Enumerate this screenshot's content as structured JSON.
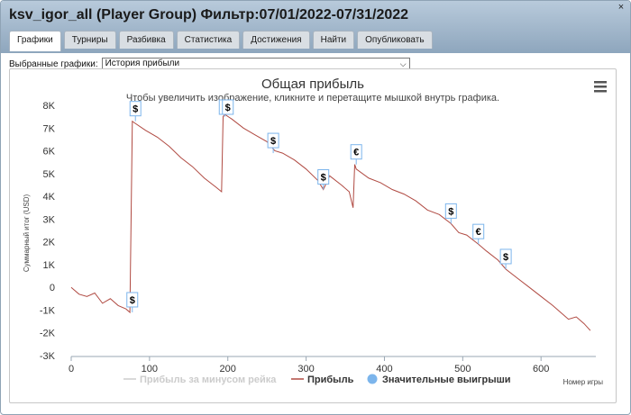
{
  "window": {
    "title": "ksv_igor_all (Player Group) Фильтр:07/01/2022-07/31/2022",
    "close_symbol": "×"
  },
  "tabs": [
    {
      "label": "Графики",
      "active": true
    },
    {
      "label": "Турниры",
      "active": false
    },
    {
      "label": "Разбивка",
      "active": false
    },
    {
      "label": "Статистика",
      "active": false
    },
    {
      "label": "Достижения",
      "active": false
    },
    {
      "label": "Найти",
      "active": false
    },
    {
      "label": "Опубликовать",
      "active": false
    }
  ],
  "selector": {
    "label": "Выбранные графики:",
    "value": "История прибыли"
  },
  "colors": {
    "profit_line": "#b04a42",
    "rake_line": "#bbbbbb",
    "big_win": "#7cb5ec"
  },
  "chart_data": {
    "type": "line",
    "title": "Общая прибыль",
    "subtitle": "Чтобы увеличить изображение, кликните и перетащите мышкой внутрь графика.",
    "ylabel": "Суммарный итог (USD)",
    "xlabel": "Номер игры",
    "x_ticks": [
      "0",
      "100",
      "200",
      "300",
      "400",
      "500",
      "600"
    ],
    "y_ticks": [
      "-3K",
      "-2K",
      "-1K",
      "0",
      "1K",
      "2K",
      "3K",
      "4K",
      "5K",
      "6K",
      "7K",
      "8K"
    ],
    "xlim": [
      0,
      670
    ],
    "ylim": [
      -3000,
      8000
    ],
    "grid": false,
    "legend": {
      "position": "bottom",
      "items": [
        {
          "label": "Прибыль за минусом рейка",
          "visible": false
        },
        {
          "label": "Прибыль",
          "visible": true
        },
        {
          "label": "Значительные выигрыши",
          "visible": true
        }
      ]
    },
    "series": [
      {
        "name": "Прибыль",
        "x": [
          0,
          10,
          20,
          30,
          40,
          50,
          60,
          70,
          75,
          78,
          80,
          95,
          110,
          125,
          140,
          155,
          170,
          185,
          192,
          194,
          196,
          205,
          220,
          235,
          250,
          260,
          270,
          285,
          300,
          315,
          322,
          330,
          345,
          355,
          360,
          362,
          364,
          380,
          395,
          410,
          425,
          440,
          455,
          470,
          485,
          495,
          505,
          520,
          530,
          545,
          555,
          570,
          585,
          600,
          615,
          625,
          635,
          645,
          655,
          663
        ],
        "y": [
          0,
          -300,
          -400,
          -250,
          -700,
          -500,
          -800,
          -950,
          -1100,
          7300,
          7250,
          6900,
          6600,
          6200,
          5700,
          5300,
          4800,
          4400,
          4200,
          7500,
          7600,
          7400,
          7000,
          6700,
          6400,
          6000,
          5900,
          5600,
          5200,
          4700,
          4300,
          4900,
          4500,
          4200,
          3500,
          5400,
          5200,
          4800,
          4600,
          4300,
          4100,
          3800,
          3400,
          3200,
          2800,
          2400,
          2300,
          1900,
          1600,
          1200,
          800,
          400,
          0,
          -400,
          -800,
          -1100,
          -1400,
          -1300,
          -1600,
          -1900
        ]
      }
    ],
    "big_wins": [
      {
        "x": 78,
        "y": -1100,
        "symbol": "$"
      },
      {
        "x": 82,
        "y": 7300,
        "symbol": "$"
      },
      {
        "x": 196,
        "y": 7500,
        "symbol": "$"
      },
      {
        "x": 200,
        "y": 7600,
        "symbol": "$"
      },
      {
        "x": 258,
        "y": 5900,
        "symbol": "$"
      },
      {
        "x": 322,
        "y": 4300,
        "symbol": "$"
      },
      {
        "x": 364,
        "y": 5400,
        "symbol": "€"
      },
      {
        "x": 485,
        "y": 2800,
        "symbol": "$"
      },
      {
        "x": 520,
        "y": 1900,
        "symbol": "€"
      },
      {
        "x": 555,
        "y": 800,
        "symbol": "$"
      }
    ]
  }
}
